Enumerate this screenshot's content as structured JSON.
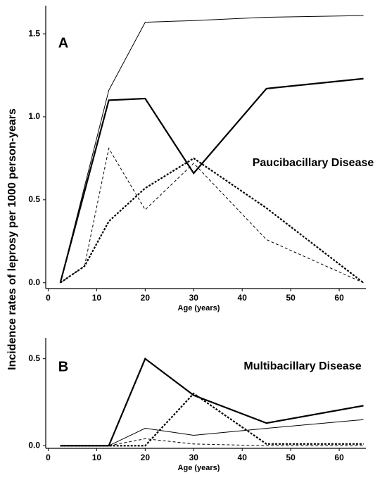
{
  "ylabel": "Incidence rates of leprosy per 1000 person-years",
  "chart_data": [
    {
      "type": "line",
      "panel_label": "A",
      "annotation": "Paucibacillary Disease",
      "xlabel": "Age (years)",
      "x": [
        2.5,
        7.5,
        12.5,
        20,
        30,
        45,
        65
      ],
      "xlim": [
        -0.5,
        65.5
      ],
      "xticks": [
        0,
        10,
        20,
        30,
        40,
        50,
        60
      ],
      "ylim": [
        -0.035,
        1.67
      ],
      "yticks": [
        {
          "value": 0,
          "label": "0.0"
        },
        0.5,
        {
          "value": 1,
          "label": "1.0"
        },
        1.5
      ],
      "series": [
        {
          "color": "#000000",
          "line_width": 1,
          "dash": "none",
          "values": [
            0,
            0.58,
            1.16,
            1.57,
            1.58,
            1.6,
            1.61
          ]
        },
        {
          "color": "#000000",
          "line_width": 2.2,
          "dash": "none",
          "values": [
            0,
            0.55,
            1.1,
            1.11,
            0.66,
            1.17,
            1.23
          ]
        },
        {
          "color": "#000000",
          "line_width": 1,
          "dash": "4 3",
          "values": [
            0,
            0.1,
            0.81,
            0.44,
            0.72,
            0.26,
            0
          ]
        },
        {
          "color": "#000000",
          "line_width": 2.2,
          "dash": "3 2",
          "values": [
            0,
            0.1,
            0.37,
            0.57,
            0.75,
            0.45,
            0
          ]
        }
      ]
    },
    {
      "type": "line",
      "panel_label": "B",
      "annotation": "Multibacillary Disease",
      "xlabel": "Age (years)",
      "x": [
        2.5,
        7.5,
        12.5,
        20,
        30,
        45,
        65
      ],
      "xlim": [
        -0.5,
        65.5
      ],
      "xticks": [
        0,
        10,
        20,
        30,
        40,
        50,
        60
      ],
      "ylim": [
        -0.015,
        0.62
      ],
      "yticks": [
        {
          "value": 0,
          "label": "0.0"
        },
        0.5
      ],
      "series": [
        {
          "color": "#000000",
          "line_width": 2.2,
          "dash": "none",
          "values": [
            0,
            0,
            0,
            0.5,
            0.29,
            0.13,
            0.23
          ]
        },
        {
          "color": "#000000",
          "line_width": 1,
          "dash": "none",
          "values": [
            0,
            0,
            0,
            0.1,
            0.06,
            0.1,
            0.15
          ]
        },
        {
          "color": "#000000",
          "line_width": 2.2,
          "dash": "3 2",
          "values": [
            0,
            0,
            0,
            0,
            0.3,
            0.01,
            0.01
          ]
        },
        {
          "color": "#000000",
          "line_width": 1,
          "dash": "4 3",
          "values": [
            0,
            0,
            0,
            0.04,
            0.01,
            0,
            0
          ]
        }
      ]
    }
  ]
}
